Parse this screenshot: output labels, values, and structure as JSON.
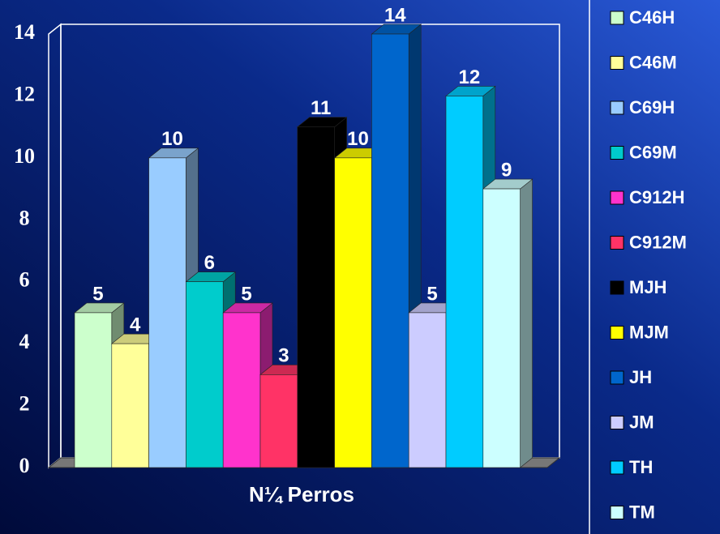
{
  "chart_data": {
    "type": "bar3d",
    "xlabel": "N¼ Perros",
    "series": [
      {
        "name": "C46H",
        "color": "#ccffcc",
        "values": [
          5
        ]
      },
      {
        "name": "C46M",
        "color": "#ffff99",
        "values": [
          4
        ]
      },
      {
        "name": "C69H",
        "color": "#99ccff",
        "values": [
          10
        ]
      },
      {
        "name": "C69M",
        "color": "#00cccc",
        "values": [
          6
        ]
      },
      {
        "name": "C912H",
        "color": "#ff33cc",
        "values": [
          5
        ]
      },
      {
        "name": "C912M",
        "color": "#ff3366",
        "values": [
          3
        ]
      },
      {
        "name": "MJH",
        "color": "#000000",
        "values": [
          11
        ]
      },
      {
        "name": "MJM",
        "color": "#ffff00",
        "values": [
          10
        ]
      },
      {
        "name": "JH",
        "color": "#0066cc",
        "values": [
          14
        ]
      },
      {
        "name": "JM",
        "color": "#ccccff",
        "values": [
          5
        ]
      },
      {
        "name": "TH",
        "color": "#00ccff",
        "values": [
          12
        ]
      },
      {
        "name": "TM",
        "color": "#ccffff",
        "values": [
          9
        ]
      }
    ],
    "ylim": [
      0,
      14
    ],
    "yticks": [
      0,
      2,
      4,
      6,
      8,
      10,
      12,
      14
    ],
    "grid": false,
    "legend": "right"
  }
}
